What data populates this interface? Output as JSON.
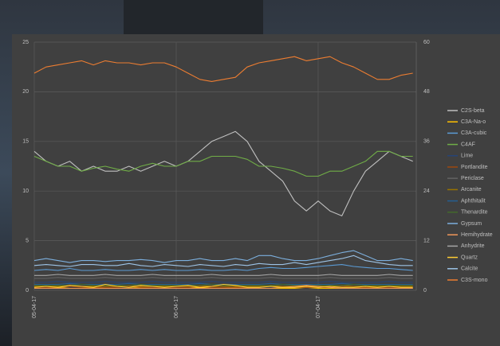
{
  "chart_data": {
    "type": "line",
    "categories": [
      "05-04-17",
      null,
      null,
      null,
      null,
      null,
      null,
      null,
      null,
      null,
      null,
      null,
      "06-04-17",
      null,
      null,
      null,
      null,
      null,
      null,
      null,
      null,
      null,
      null,
      null,
      "07-04-17",
      null,
      null,
      null,
      null,
      null,
      null,
      null,
      null
    ],
    "ylim": [
      0,
      25
    ],
    "yticks": [
      0,
      5,
      10,
      15,
      20,
      25
    ],
    "y2lim": [
      0,
      60
    ],
    "y2ticks": [
      0,
      12,
      24,
      36,
      48,
      60
    ],
    "grid": true,
    "legend": "right",
    "series": [
      {
        "name": "C2S-beta",
        "color": "#bfbfbf",
        "values": [
          14,
          13,
          12.5,
          13,
          12,
          12.5,
          12,
          12,
          12.5,
          12,
          12.5,
          13,
          12.5,
          13,
          14,
          15,
          15.5,
          16,
          15,
          13,
          12,
          11,
          9,
          8,
          9,
          8,
          7.5,
          10,
          12,
          13,
          14,
          13.5,
          13
        ]
      },
      {
        "name": "C3A-Na-o",
        "color": "#ffc000",
        "values": [
          0.2,
          0.2,
          0.3,
          0.2,
          0.2,
          0.3,
          0.2,
          0.2,
          0.2,
          0.3,
          0.2,
          0.2,
          0.2,
          0.2,
          0.3,
          0.2,
          0.2,
          0.3,
          0.2,
          0.2,
          0.2,
          0.2,
          0.2,
          0.3,
          0.2,
          0.2,
          0.2,
          0.2,
          0.3,
          0.2,
          0.2,
          0.2,
          0.2
        ]
      },
      {
        "name": "C3A-cubic",
        "color": "#5b9bd5",
        "values": [
          2,
          2.1,
          2,
          2.2,
          2,
          2,
          2.1,
          2,
          2,
          2.1,
          2,
          2.1,
          2,
          2,
          2.1,
          2,
          2,
          2.1,
          2,
          2.2,
          2.3,
          2.2,
          2.2,
          2.3,
          2.4,
          2.5,
          2.6,
          2.4,
          2.3,
          2.2,
          2.2,
          2.1,
          2
        ]
      },
      {
        "name": "C4AF",
        "color": "#70ad47",
        "values": [
          13.5,
          13,
          12.5,
          12.5,
          12,
          12.3,
          12.5,
          12.2,
          12,
          12.5,
          12.8,
          12.5,
          12.5,
          13,
          13,
          13.5,
          13.5,
          13.5,
          13.2,
          12.5,
          12.5,
          12.3,
          12,
          11.5,
          11.5,
          12,
          12,
          12.5,
          13,
          14,
          14,
          13.5,
          13.5
        ]
      },
      {
        "name": "Lime",
        "color": "#264478",
        "values": [
          0.8,
          0.8,
          0.9,
          0.8,
          0.8,
          0.8,
          0.9,
          0.8,
          0.8,
          0.8,
          0.9,
          0.8,
          0.8,
          0.8,
          0.8,
          0.9,
          0.8,
          0.8,
          0.8,
          0.8,
          0.9,
          0.8,
          0.8,
          0.8,
          0.8,
          0.9,
          0.8,
          0.8,
          0.8,
          0.8,
          0.9,
          0.8,
          0.8
        ]
      },
      {
        "name": "Portlandite",
        "color": "#9e480e",
        "values": [
          0.3,
          0.3,
          0.3,
          0.4,
          0.3,
          0.3,
          0.3,
          0.3,
          0.4,
          0.3,
          0.3,
          0.3,
          0.3,
          0.3,
          0.4,
          0.3,
          0.3,
          0.3,
          0.3,
          0.3,
          0.4,
          0.3,
          0.3,
          0.3,
          0.3,
          0.3,
          0.4,
          0.3,
          0.3,
          0.3,
          0.3,
          0.3,
          0.3
        ]
      },
      {
        "name": "Periclase",
        "color": "#636363",
        "values": [
          1.2,
          1.2,
          1.3,
          1.2,
          1.2,
          1.2,
          1.3,
          1.2,
          1.2,
          1.2,
          1.3,
          1.2,
          1.2,
          1.2,
          1.2,
          1.3,
          1.2,
          1.2,
          1.2,
          1.2,
          1.3,
          1.2,
          1.2,
          1.2,
          1.2,
          1.3,
          1.2,
          1.2,
          1.2,
          1.2,
          1.3,
          1.2,
          1.2
        ]
      },
      {
        "name": "Arcanite",
        "color": "#997300",
        "values": [
          0.4,
          0.4,
          0.4,
          0.5,
          0.4,
          0.4,
          0.4,
          0.4,
          0.5,
          0.4,
          0.4,
          0.4,
          0.4,
          0.4,
          0.5,
          0.4,
          0.4,
          0.4,
          0.4,
          0.4,
          0.5,
          0.4,
          0.4,
          0.4,
          0.4,
          0.4,
          0.5,
          0.4,
          0.4,
          0.4,
          0.4,
          0.4,
          0.4
        ]
      },
      {
        "name": "Aphthitalit",
        "color": "#255e91",
        "values": [
          0.6,
          0.6,
          0.6,
          0.7,
          0.6,
          0.6,
          0.6,
          0.6,
          0.7,
          0.6,
          0.6,
          0.6,
          0.6,
          0.6,
          0.7,
          0.6,
          0.6,
          0.6,
          0.6,
          0.6,
          0.7,
          0.6,
          0.6,
          0.6,
          0.6,
          0.6,
          0.7,
          0.6,
          0.6,
          0.6,
          0.6,
          0.6,
          0.6
        ]
      },
      {
        "name": "Thenardite",
        "color": "#43682b",
        "values": [
          0.5,
          0.5,
          0.5,
          0.5,
          0.6,
          0.5,
          0.5,
          0.5,
          0.5,
          0.6,
          0.5,
          0.5,
          0.5,
          0.5,
          0.5,
          0.6,
          0.5,
          0.5,
          0.5,
          0.5,
          0.5,
          0.6,
          0.5,
          0.5,
          0.5,
          0.5,
          0.5,
          0.6,
          0.5,
          0.5,
          0.5,
          0.5,
          0.5
        ]
      },
      {
        "name": "Gypsum",
        "color": "#7cafdd",
        "values": [
          3,
          3.2,
          3,
          2.8,
          3,
          3,
          2.9,
          3,
          3,
          3.1,
          3,
          2.8,
          3,
          3,
          3.2,
          3,
          3,
          3.2,
          3,
          3.5,
          3.5,
          3.2,
          3,
          3,
          3.2,
          3.5,
          3.8,
          4,
          3.5,
          3,
          3,
          3.2,
          3
        ]
      },
      {
        "name": "Hemihydrate",
        "color": "#f1975a",
        "values": [
          0.2,
          0.2,
          0.2,
          0.2,
          0.2,
          0.2,
          0.2,
          0.2,
          0.2,
          0.2,
          0.2,
          0.2,
          0.2,
          0.2,
          0.2,
          0.2,
          0.2,
          0.2,
          0.2,
          0.2,
          0.2,
          0.3,
          0.4,
          0.5,
          0.4,
          0.3,
          0.2,
          0.2,
          0.2,
          0.2,
          0.2,
          0.2,
          0.2
        ]
      },
      {
        "name": "Anhydrite",
        "color": "#a5a5a5",
        "values": [
          1.5,
          1.5,
          1.6,
          1.5,
          1.5,
          1.5,
          1.6,
          1.5,
          1.5,
          1.5,
          1.6,
          1.5,
          1.5,
          1.5,
          1.5,
          1.6,
          1.5,
          1.5,
          1.5,
          1.5,
          1.6,
          1.5,
          1.5,
          1.5,
          1.5,
          1.6,
          1.5,
          1.5,
          1.5,
          1.5,
          1.6,
          1.5,
          1.5
        ]
      },
      {
        "name": "Quartz",
        "color": "#ffcd33",
        "values": [
          0.3,
          0.4,
          0.3,
          0.5,
          0.4,
          0.3,
          0.6,
          0.4,
          0.3,
          0.5,
          0.4,
          0.3,
          0.4,
          0.5,
          0.3,
          0.4,
          0.6,
          0.5,
          0.3,
          0.3,
          0.4,
          0.3,
          0.3,
          0.4,
          0.3,
          0.4,
          0.3,
          0.3,
          0.4,
          0.3,
          0.4,
          0.3,
          0.3
        ]
      },
      {
        "name": "Calcite",
        "color": "#9dc3e6",
        "values": [
          2.5,
          2.6,
          2.5,
          2.4,
          2.6,
          2.6,
          2.5,
          2.5,
          2.7,
          2.5,
          2.4,
          2.6,
          2.5,
          2.4,
          2.6,
          2.5,
          2.4,
          2.6,
          2.5,
          2.7,
          2.6,
          2.6,
          2.8,
          2.6,
          2.8,
          3,
          3.2,
          3.5,
          3,
          2.8,
          2.6,
          2.5,
          2.5
        ]
      },
      {
        "name": "C3S-mono",
        "color": "#ed7d31",
        "axis": "y2",
        "values": [
          52.5,
          54,
          54.5,
          55,
          55.5,
          54.5,
          55.5,
          55,
          55,
          54.5,
          55,
          55,
          54,
          52.5,
          51,
          50.5,
          51,
          51.5,
          54,
          55,
          55.5,
          56,
          56.5,
          55.5,
          56,
          56.5,
          55,
          54,
          52.5,
          51,
          51,
          52,
          52.5
        ]
      }
    ]
  }
}
